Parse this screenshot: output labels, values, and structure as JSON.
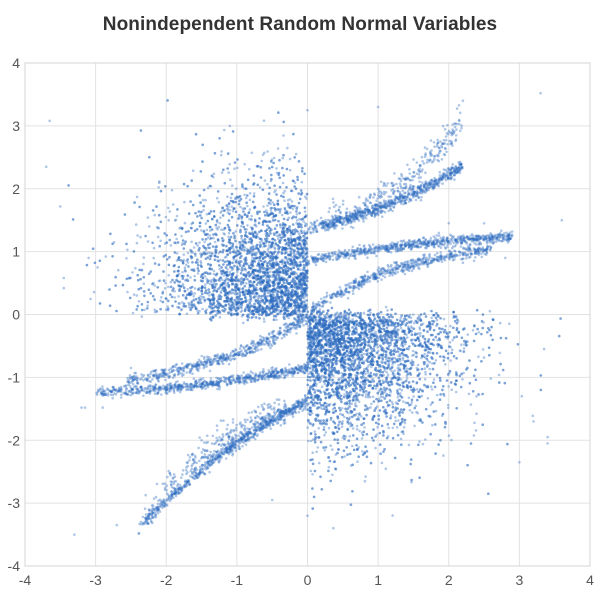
{
  "chart_data": {
    "type": "scatter",
    "title": "Nonindependent Random Normal Variables",
    "xlabel": "",
    "ylabel": "",
    "xlim": [
      -4,
      4
    ],
    "ylim": [
      -4,
      4
    ],
    "xticks": [
      "-4",
      "-3",
      "-2",
      "-1",
      "0",
      "1",
      "2",
      "3",
      "4"
    ],
    "yticks": [
      "-4",
      "-3",
      "-2",
      "-1",
      "0",
      "1",
      "2",
      "3",
      "4"
    ],
    "grid": true,
    "legend": "none",
    "marker_color": "#2e6bc0",
    "series": [
      {
        "description_points_generated": "approx. 10000 points from bivariate nonindependent normal construction",
        "sample_points": [
          [
            -3.65,
            3.08
          ],
          [
            -3.7,
            2.35
          ],
          [
            -3.5,
            1.72
          ],
          [
            -3.45,
            0.42
          ],
          [
            -3.45,
            0.58
          ],
          [
            -3.15,
            -1.48
          ],
          [
            -3.2,
            -1.48
          ],
          [
            -3.3,
            -3.5
          ],
          [
            -2.7,
            -3.35
          ],
          [
            -3.1,
            0.9
          ],
          [
            3.3,
            3.52
          ],
          [
            3.6,
            1.5
          ],
          [
            3.35,
            -0.55
          ],
          [
            3.4,
            -1.95
          ],
          [
            3.4,
            -2.05
          ],
          [
            3.0,
            -2.35
          ],
          [
            3.2,
            -1.7
          ],
          [
            2.2,
            3.4
          ],
          [
            1.0,
            3.3
          ],
          [
            0.0,
            3.25
          ],
          [
            0.0,
            -3.2
          ],
          [
            -0.5,
            -2.95
          ],
          [
            -2.2,
            -3.2
          ],
          [
            -1.1,
            3.0
          ],
          [
            2.0,
            1.45
          ],
          [
            2.5,
            1.45
          ],
          [
            -2.5,
            -0.85
          ],
          [
            -2.9,
            -1.48
          ],
          [
            2.8,
            0.9
          ],
          [
            -1.0,
            0.4
          ],
          [
            0.5,
            -0.4
          ],
          [
            1.0,
            2.0
          ],
          [
            -1.5,
            -2.0
          ],
          [
            1.5,
            -0.8
          ],
          [
            -0.5,
            0.8
          ]
        ]
      }
    ]
  }
}
